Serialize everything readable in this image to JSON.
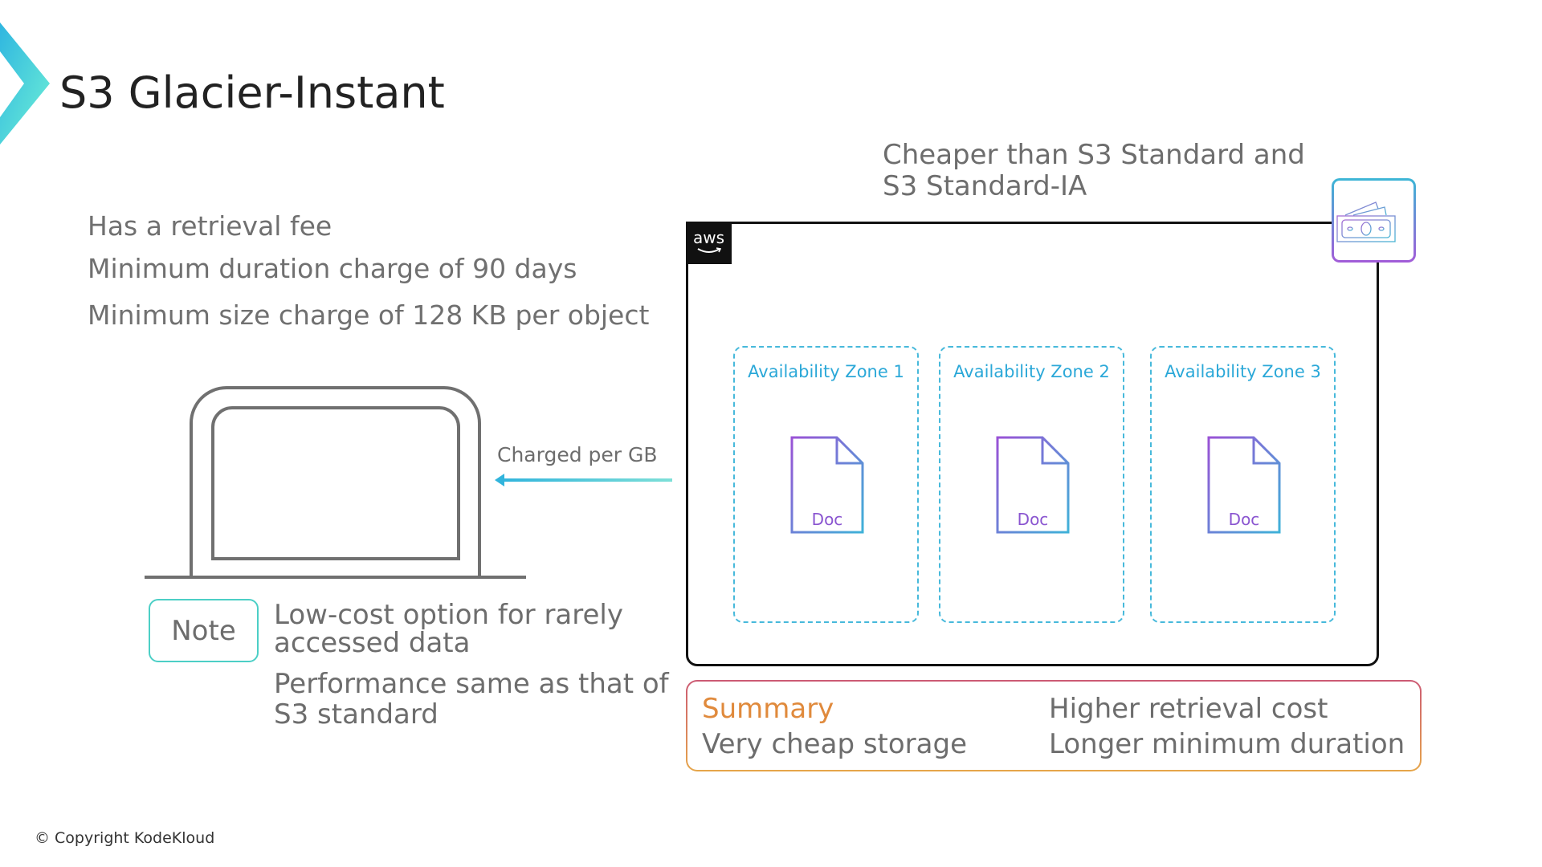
{
  "title": "S3 Glacier-Instant",
  "facts": [
    "Has a retrieval fee",
    "Minimum duration charge of 90 days",
    "Minimum size charge of 128 KB per object"
  ],
  "arrow_label": "Charged per GB",
  "note": {
    "label": "Note",
    "lines": [
      "Low-cost option for rarely",
      "accessed data",
      "Performance same as that of",
      "S3 standard"
    ]
  },
  "cheaper": [
    "Cheaper than S3 Standard and",
    "S3 Standard-IA"
  ],
  "aws_logo": "aws",
  "zones": [
    {
      "label": "Availability Zone 1",
      "doc": "Doc"
    },
    {
      "label": "Availability Zone 2",
      "doc": "Doc"
    },
    {
      "label": "Availability Zone 3",
      "doc": "Doc"
    }
  ],
  "summary": {
    "heading": "Summary",
    "pro": "Very cheap storage",
    "cons": [
      "Higher retrieval cost",
      "Longer minimum duration"
    ]
  },
  "copyright": "© Copyright KodeKloud",
  "colors": {
    "accent_teal": "#4ccfc6",
    "zone_blue": "#2ba8d8",
    "doc_purple": "#8a55d0",
    "summary_orange": "#e08a3c"
  }
}
